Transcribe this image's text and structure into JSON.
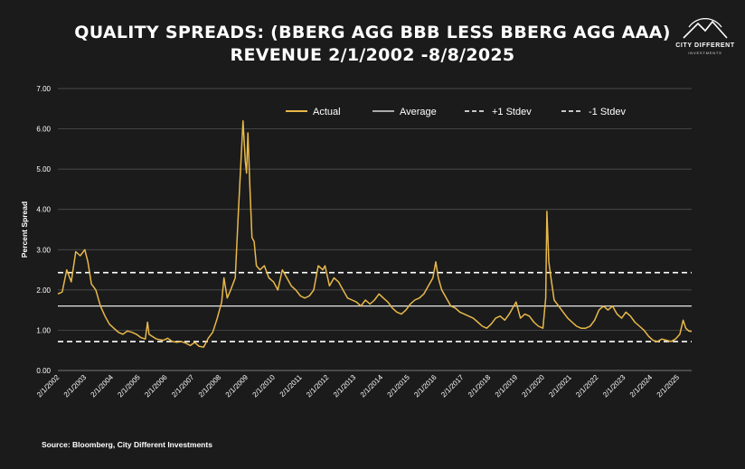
{
  "title_line1": "QUALITY SPREADS: (BBERG AGG BBB LESS BBERG AGG AAA)",
  "title_line2": "REVENUE 2/1/2002 -8/8/2025",
  "logo": {
    "name": "CITY DIFFERENT",
    "sub": "INVESTMENTS",
    "icon": "mountain-icon"
  },
  "source": "Source: Bloomberg, City Different Investments",
  "colors": {
    "background": "#1b1b1b",
    "actual": "#e8b84a",
    "lines": "#ffffff",
    "grid": "#5a5a5a"
  },
  "chart_data": {
    "type": "line",
    "ylabel": "Percent Spread",
    "xlabel": "",
    "ylim": [
      0,
      7
    ],
    "yticks": [
      "0.00",
      "1.00",
      "2.00",
      "3.00",
      "4.00",
      "5.00",
      "6.00",
      "7.00"
    ],
    "xticks": [
      "2/1/2002",
      "2/1/2003",
      "2/1/2004",
      "2/1/2005",
      "2/1/2006",
      "2/1/2007",
      "2/1/2008",
      "2/1/2009",
      "2/1/2010",
      "2/1/2011",
      "2/1/2012",
      "2/1/2013",
      "2/1/2014",
      "2/1/2015",
      "2/1/2016",
      "2/1/2017",
      "2/1/2018",
      "2/1/2019",
      "2/1/2020",
      "2/1/2021",
      "2/1/2022",
      "2/1/2023",
      "2/1/2024",
      "2/1/2025"
    ],
    "xlim": [
      "2002-02-01",
      "2025-08-08"
    ],
    "legend_position": "top",
    "grid": true,
    "series": [
      {
        "name": "Actual",
        "style": "solid-gold",
        "points": [
          [
            "2002-02-01",
            1.9
          ],
          [
            "2002-04-01",
            1.95
          ],
          [
            "2002-06-01",
            2.5
          ],
          [
            "2002-08-01",
            2.2
          ],
          [
            "2002-10-01",
            2.95
          ],
          [
            "2002-12-01",
            2.85
          ],
          [
            "2003-02-01",
            3.0
          ],
          [
            "2003-03-15",
            2.7
          ],
          [
            "2003-05-01",
            2.15
          ],
          [
            "2003-07-01",
            2.0
          ],
          [
            "2003-09-01",
            1.6
          ],
          [
            "2003-11-01",
            1.35
          ],
          [
            "2004-01-01",
            1.15
          ],
          [
            "2004-03-01",
            1.05
          ],
          [
            "2004-05-01",
            0.95
          ],
          [
            "2004-07-01",
            0.9
          ],
          [
            "2004-09-01",
            0.98
          ],
          [
            "2004-11-01",
            0.95
          ],
          [
            "2005-01-01",
            0.9
          ],
          [
            "2005-03-01",
            0.82
          ],
          [
            "2005-05-01",
            0.78
          ],
          [
            "2005-06-01",
            1.2
          ],
          [
            "2005-06-20",
            0.9
          ],
          [
            "2005-08-01",
            0.85
          ],
          [
            "2005-10-01",
            0.78
          ],
          [
            "2006-01-01",
            0.75
          ],
          [
            "2006-03-01",
            0.8
          ],
          [
            "2006-05-01",
            0.72
          ],
          [
            "2006-07-01",
            0.7
          ],
          [
            "2006-09-01",
            0.72
          ],
          [
            "2006-11-01",
            0.68
          ],
          [
            "2007-01-01",
            0.62
          ],
          [
            "2007-03-01",
            0.7
          ],
          [
            "2007-05-01",
            0.6
          ],
          [
            "2007-07-01",
            0.58
          ],
          [
            "2007-09-01",
            0.8
          ],
          [
            "2007-11-01",
            0.95
          ],
          [
            "2008-01-01",
            1.3
          ],
          [
            "2008-03-01",
            1.7
          ],
          [
            "2008-04-01",
            2.3
          ],
          [
            "2008-05-15",
            1.8
          ],
          [
            "2008-07-01",
            2.0
          ],
          [
            "2008-09-01",
            2.3
          ],
          [
            "2008-10-15",
            4.0
          ],
          [
            "2008-11-15",
            5.1
          ],
          [
            "2008-12-15",
            6.2
          ],
          [
            "2009-01-15",
            5.2
          ],
          [
            "2009-02-01",
            4.9
          ],
          [
            "2009-02-20",
            5.9
          ],
          [
            "2009-03-20",
            4.5
          ],
          [
            "2009-04-15",
            3.3
          ],
          [
            "2009-05-15",
            3.2
          ],
          [
            "2009-06-15",
            2.6
          ],
          [
            "2009-08-01",
            2.5
          ],
          [
            "2009-10-01",
            2.6
          ],
          [
            "2009-12-01",
            2.3
          ],
          [
            "2010-02-01",
            2.2
          ],
          [
            "2010-04-01",
            2.0
          ],
          [
            "2010-06-01",
            2.5
          ],
          [
            "2010-08-01",
            2.3
          ],
          [
            "2010-10-01",
            2.1
          ],
          [
            "2010-12-01",
            2.0
          ],
          [
            "2011-02-01",
            1.85
          ],
          [
            "2011-04-01",
            1.8
          ],
          [
            "2011-06-01",
            1.85
          ],
          [
            "2011-08-01",
            2.0
          ],
          [
            "2011-10-01",
            2.6
          ],
          [
            "2011-12-01",
            2.5
          ],
          [
            "2012-01-01",
            2.6
          ],
          [
            "2012-03-01",
            2.1
          ],
          [
            "2012-05-01",
            2.3
          ],
          [
            "2012-07-01",
            2.2
          ],
          [
            "2012-09-01",
            2.0
          ],
          [
            "2012-11-01",
            1.8
          ],
          [
            "2013-01-01",
            1.75
          ],
          [
            "2013-03-01",
            1.7
          ],
          [
            "2013-05-01",
            1.6
          ],
          [
            "2013-07-01",
            1.75
          ],
          [
            "2013-09-01",
            1.65
          ],
          [
            "2013-11-01",
            1.75
          ],
          [
            "2014-01-01",
            1.9
          ],
          [
            "2014-03-01",
            1.8
          ],
          [
            "2014-05-01",
            1.7
          ],
          [
            "2014-07-01",
            1.55
          ],
          [
            "2014-09-01",
            1.45
          ],
          [
            "2014-11-01",
            1.4
          ],
          [
            "2015-01-01",
            1.5
          ],
          [
            "2015-03-01",
            1.65
          ],
          [
            "2015-05-01",
            1.75
          ],
          [
            "2015-07-01",
            1.8
          ],
          [
            "2015-09-01",
            1.9
          ],
          [
            "2015-11-01",
            2.1
          ],
          [
            "2016-01-01",
            2.3
          ],
          [
            "2016-02-10",
            2.7
          ],
          [
            "2016-03-15",
            2.3
          ],
          [
            "2016-05-01",
            2.0
          ],
          [
            "2016-07-01",
            1.8
          ],
          [
            "2016-09-01",
            1.6
          ],
          [
            "2016-11-01",
            1.55
          ],
          [
            "2017-01-01",
            1.45
          ],
          [
            "2017-03-01",
            1.4
          ],
          [
            "2017-05-01",
            1.35
          ],
          [
            "2017-07-01",
            1.3
          ],
          [
            "2017-09-01",
            1.2
          ],
          [
            "2017-11-01",
            1.1
          ],
          [
            "2018-01-01",
            1.05
          ],
          [
            "2018-03-01",
            1.15
          ],
          [
            "2018-05-01",
            1.3
          ],
          [
            "2018-07-01",
            1.35
          ],
          [
            "2018-09-01",
            1.25
          ],
          [
            "2018-11-01",
            1.4
          ],
          [
            "2019-01-01",
            1.6
          ],
          [
            "2019-02-01",
            1.7
          ],
          [
            "2019-04-01",
            1.3
          ],
          [
            "2019-06-01",
            1.4
          ],
          [
            "2019-08-01",
            1.35
          ],
          [
            "2019-10-01",
            1.2
          ],
          [
            "2019-12-01",
            1.1
          ],
          [
            "2020-02-01",
            1.05
          ],
          [
            "2020-03-10",
            1.8
          ],
          [
            "2020-03-25",
            3.95
          ],
          [
            "2020-04-20",
            2.7
          ],
          [
            "2020-05-20",
            2.3
          ],
          [
            "2020-07-01",
            1.75
          ],
          [
            "2020-09-01",
            1.6
          ],
          [
            "2020-11-01",
            1.45
          ],
          [
            "2021-01-01",
            1.3
          ],
          [
            "2021-03-01",
            1.2
          ],
          [
            "2021-05-01",
            1.1
          ],
          [
            "2021-07-01",
            1.05
          ],
          [
            "2021-09-01",
            1.05
          ],
          [
            "2021-11-01",
            1.1
          ],
          [
            "2022-01-01",
            1.25
          ],
          [
            "2022-03-01",
            1.5
          ],
          [
            "2022-05-01",
            1.6
          ],
          [
            "2022-07-01",
            1.5
          ],
          [
            "2022-09-01",
            1.6
          ],
          [
            "2022-11-01",
            1.4
          ],
          [
            "2023-01-01",
            1.3
          ],
          [
            "2023-03-01",
            1.45
          ],
          [
            "2023-05-01",
            1.35
          ],
          [
            "2023-07-01",
            1.2
          ],
          [
            "2023-09-01",
            1.1
          ],
          [
            "2023-11-01",
            1.0
          ],
          [
            "2024-01-01",
            0.85
          ],
          [
            "2024-03-01",
            0.75
          ],
          [
            "2024-05-01",
            0.72
          ],
          [
            "2024-07-01",
            0.78
          ],
          [
            "2024-09-01",
            0.75
          ],
          [
            "2024-11-01",
            0.72
          ],
          [
            "2025-01-01",
            0.78
          ],
          [
            "2025-03-01",
            0.9
          ],
          [
            "2025-04-15",
            1.25
          ],
          [
            "2025-05-20",
            1.05
          ],
          [
            "2025-07-01",
            0.98
          ],
          [
            "2025-08-08",
            0.97
          ]
        ]
      },
      {
        "name": "Average",
        "style": "solid-white",
        "value": 1.6
      },
      {
        "name": "+1 Stdev",
        "style": "dashed-white",
        "value": 2.43
      },
      {
        "name": "-1 Stdev",
        "style": "dashed-white",
        "value": 0.72
      }
    ]
  }
}
